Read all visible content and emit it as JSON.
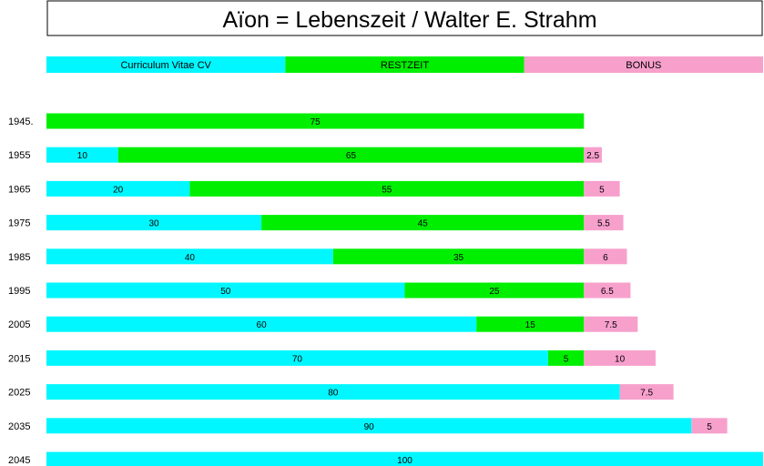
{
  "colors": {
    "cv": "#00f7ff",
    "rest": "#00ef00",
    "bonus": "#f7a0cc"
  },
  "chart_data": {
    "type": "bar",
    "orientation": "horizontal",
    "stacked": true,
    "title": "Aïon = Lebenszeit  /  Walter E. Strahm",
    "legend": [
      "Curriculum Vitae   CV",
      "RESTZEIT",
      "BONUS"
    ],
    "legend_position": "top",
    "categories": [
      "1945.",
      "1955",
      "1965",
      "1975",
      "1985",
      "1995",
      "2005",
      "2015",
      "2025",
      "2035",
      "2045"
    ],
    "series": [
      {
        "name": "Curriculum Vitae   CV",
        "key": "cv",
        "values": [
          0,
          10,
          20,
          30,
          40,
          50,
          60,
          70,
          80,
          90,
          100
        ],
        "labels": [
          "",
          "10",
          "20",
          "30",
          "40",
          "50",
          "60",
          "70",
          "80",
          "90",
          "100"
        ]
      },
      {
        "name": "RESTZEIT",
        "key": "rest",
        "values": [
          75,
          65,
          55,
          45,
          35,
          25,
          15,
          5,
          0,
          0,
          0
        ],
        "labels": [
          "75",
          "65",
          "55",
          "45",
          "35",
          "25",
          "15",
          "5",
          "",
          "",
          ""
        ]
      },
      {
        "name": "BONUS",
        "key": "bonus",
        "values": [
          0,
          2.5,
          5,
          5.5,
          6,
          6.5,
          7.5,
          10,
          7.5,
          5,
          0
        ],
        "labels": [
          "",
          "2.5",
          "5",
          "5.5",
          "6",
          "6.5",
          "7.5",
          "10",
          "7.5",
          "5",
          ""
        ]
      }
    ],
    "xlim": [
      0,
      100
    ],
    "grid": false
  }
}
